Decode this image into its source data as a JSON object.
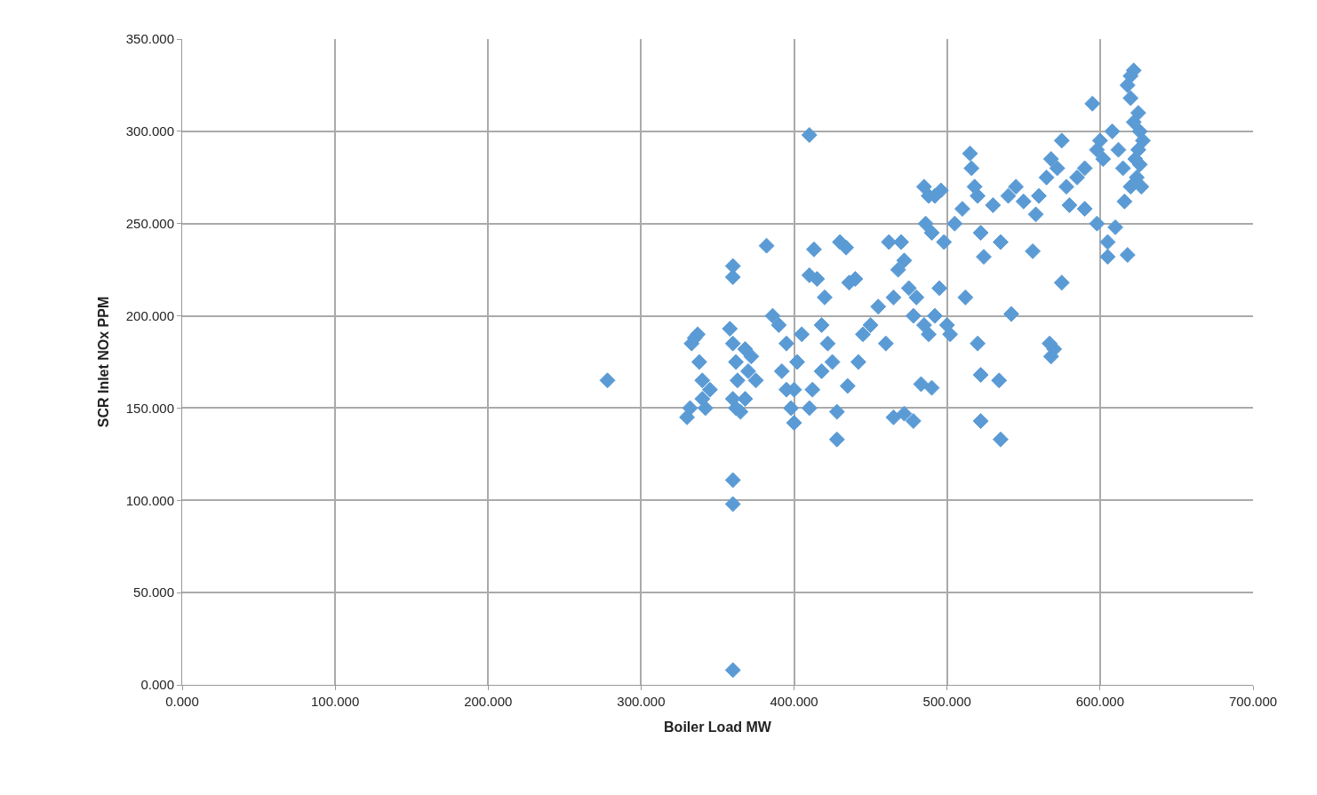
{
  "chart_data": {
    "type": "scatter",
    "xlabel": "Boiler Load MW",
    "ylabel": "SCR Inlet NOx PPM",
    "marker": "diamond",
    "grid": true,
    "xlim": [
      0,
      700
    ],
    "ylim": [
      0,
      350
    ],
    "xticks": [
      {
        "value": 0,
        "label": "0.000"
      },
      {
        "value": 100,
        "label": "100.000"
      },
      {
        "value": 200,
        "label": "200.000"
      },
      {
        "value": 300,
        "label": "300.000"
      },
      {
        "value": 400,
        "label": "400.000"
      },
      {
        "value": 500,
        "label": "500.000"
      },
      {
        "value": 600,
        "label": "600.000"
      },
      {
        "value": 700,
        "label": "700.000"
      }
    ],
    "yticks": [
      {
        "value": 0,
        "label": "0.000"
      },
      {
        "value": 50,
        "label": "50.000"
      },
      {
        "value": 100,
        "label": "100.000"
      },
      {
        "value": 150,
        "label": "150.000"
      },
      {
        "value": 200,
        "label": "200.000"
      },
      {
        "value": 250,
        "label": "250.000"
      },
      {
        "value": 300,
        "label": "300.000"
      },
      {
        "value": 350,
        "label": "350.000"
      }
    ],
    "series": [
      {
        "color": "#5b9bd5",
        "x": [
          278,
          410,
          360,
          360,
          360,
          382,
          360,
          360,
          330,
          332,
          333,
          335,
          337,
          338,
          340,
          340,
          342,
          345,
          358,
          360,
          362,
          363,
          360,
          362,
          365,
          368,
          370,
          372,
          375,
          368,
          386,
          390,
          395,
          392,
          395,
          398,
          400,
          402,
          405,
          400,
          410,
          415,
          413,
          420,
          418,
          422,
          425,
          418,
          412,
          410,
          428,
          428,
          430,
          434,
          436,
          440,
          435,
          442,
          445,
          450,
          455,
          460,
          462,
          465,
          470,
          468,
          472,
          475,
          478,
          480,
          465,
          472,
          478,
          483,
          490,
          485,
          488,
          492,
          496,
          486,
          490,
          485,
          488,
          495,
          492,
          500,
          502,
          498,
          505,
          510,
          515,
          516,
          518,
          520,
          522,
          524,
          512,
          520,
          522,
          522,
          530,
          535,
          534,
          535,
          540,
          545,
          550,
          542,
          556,
          558,
          560,
          565,
          568,
          572,
          575,
          578,
          567,
          568,
          570,
          575,
          580,
          585,
          590,
          595,
          598,
          600,
          602,
          590,
          598,
          605,
          605,
          610,
          608,
          612,
          615,
          616,
          618,
          618,
          620,
          622,
          620,
          622,
          625,
          626,
          625,
          623,
          624,
          620,
          626,
          628,
          627
        ],
        "values": [
          165,
          298,
          8,
          111,
          98,
          238,
          227,
          221,
          145,
          150,
          185,
          188,
          190,
          175,
          165,
          155,
          150,
          160,
          193,
          185,
          175,
          165,
          155,
          150,
          148,
          155,
          170,
          178,
          165,
          182,
          200,
          195,
          185,
          170,
          160,
          150,
          142,
          175,
          190,
          160,
          222,
          220,
          236,
          210,
          195,
          185,
          175,
          170,
          160,
          150,
          148,
          133,
          240,
          237,
          218,
          220,
          162,
          175,
          190,
          195,
          205,
          185,
          240,
          210,
          240,
          225,
          230,
          215,
          200,
          210,
          145,
          147,
          143,
          163,
          161,
          270,
          265,
          265,
          268,
          250,
          245,
          195,
          190,
          215,
          200,
          195,
          190,
          240,
          250,
          258,
          288,
          280,
          270,
          265,
          245,
          232,
          210,
          185,
          168,
          143,
          260,
          240,
          165,
          133,
          265,
          270,
          262,
          201,
          235,
          255,
          265,
          275,
          285,
          280,
          295,
          270,
          185,
          178,
          182,
          218,
          260,
          275,
          280,
          315,
          290,
          295,
          285,
          258,
          250,
          240,
          232,
          248,
          300,
          290,
          280,
          262,
          233,
          325,
          330,
          333,
          318,
          305,
          310,
          300,
          290,
          285,
          275,
          270,
          282,
          295,
          270
        ]
      }
    ]
  }
}
